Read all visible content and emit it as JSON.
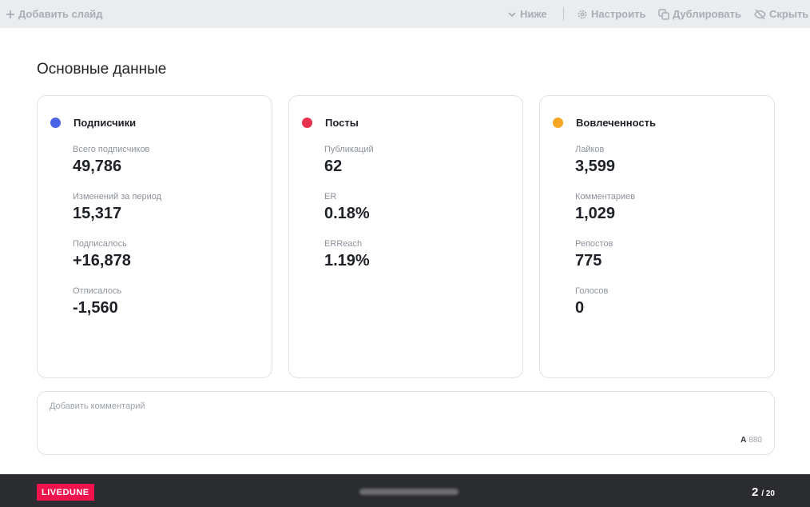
{
  "toolbar": {
    "add_slide": "Добавить слайд",
    "below": "Ниже",
    "configure": "Настроить",
    "duplicate": "Дублировать",
    "hide": "Скрыть"
  },
  "page_title": "Основные данные",
  "cards": [
    {
      "title": "Подписчики",
      "dot_color": "#4a63e7",
      "metrics": [
        {
          "label": "Всего подписчиков",
          "value": "49,786"
        },
        {
          "label": "Изменений за период",
          "value": "15,317"
        },
        {
          "label": "Подписалось",
          "value": "+16,878"
        },
        {
          "label": "Отписалось",
          "value": "-1,560"
        }
      ]
    },
    {
      "title": "Посты",
      "dot_color": "#e8334f",
      "metrics": [
        {
          "label": "Публикаций",
          "value": "62"
        },
        {
          "label": "ER",
          "value": "0.18%"
        },
        {
          "label": "ERReach",
          "value": "1.19%"
        }
      ]
    },
    {
      "title": "Вовлеченность",
      "dot_color": "#f5a623",
      "metrics": [
        {
          "label": "Лайков",
          "value": "3,599"
        },
        {
          "label": "Комментариев",
          "value": "1,029"
        },
        {
          "label": "Репостов",
          "value": "775"
        },
        {
          "label": "Голосов",
          "value": "0"
        }
      ]
    }
  ],
  "comment": {
    "placeholder": "Добавить комментарий",
    "counter_icon": "A",
    "counter_value": "880"
  },
  "footer": {
    "logo": "LIVEDUNE",
    "page_current": "2",
    "page_total": "/ 20"
  }
}
